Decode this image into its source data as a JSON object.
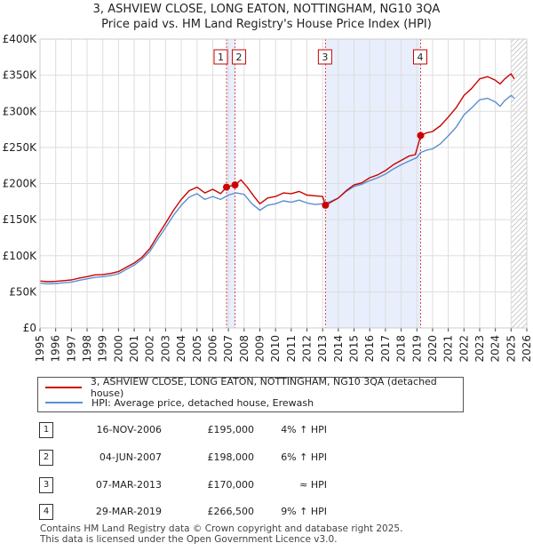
{
  "header": {
    "title_line1": "3, ASHVIEW CLOSE, LONG EATON, NOTTINGHAM, NG10 3QA",
    "title_line2": "Price paid vs. HM Land Registry's House Price Index (HPI)"
  },
  "chart_data": {
    "type": "line",
    "xlim": [
      1995,
      2026
    ],
    "ylim": [
      0,
      400000
    ],
    "y_ticks": [
      {
        "value": 0,
        "label": "£0"
      },
      {
        "value": 50000,
        "label": "£50K"
      },
      {
        "value": 100000,
        "label": "£100K"
      },
      {
        "value": 150000,
        "label": "£150K"
      },
      {
        "value": 200000,
        "label": "£200K"
      },
      {
        "value": 250000,
        "label": "£250K"
      },
      {
        "value": 300000,
        "label": "£300K"
      },
      {
        "value": 350000,
        "label": "£350K"
      },
      {
        "value": 400000,
        "label": "£400K"
      }
    ],
    "x_ticks": [
      "1995",
      "1996",
      "1997",
      "1998",
      "1999",
      "2000",
      "2001",
      "2002",
      "2003",
      "2004",
      "2005",
      "2006",
      "2007",
      "2008",
      "2009",
      "2010",
      "2011",
      "2012",
      "2013",
      "2014",
      "2015",
      "2016",
      "2017",
      "2018",
      "2019",
      "2020",
      "2021",
      "2022",
      "2023",
      "2024",
      "2025",
      "2026"
    ],
    "shaded_periods": [
      [
        2006.88,
        2007.42
      ],
      [
        2013.18,
        2019.24
      ]
    ],
    "hatched_from": 2025.0,
    "series": [
      {
        "name": "3, ASHVIEW CLOSE, LONG EATON, NOTTINGHAM, NG10 3QA (detached house)",
        "color": "#cc0000",
        "points": [
          [
            1995.0,
            65000
          ],
          [
            1995.5,
            64000
          ],
          [
            1996.0,
            64500
          ],
          [
            1996.5,
            65500
          ],
          [
            1997.0,
            66500
          ],
          [
            1997.5,
            69000
          ],
          [
            1998.0,
            71000
          ],
          [
            1998.5,
            73500
          ],
          [
            1999.0,
            74000
          ],
          [
            1999.5,
            75500
          ],
          [
            2000.0,
            78000
          ],
          [
            2000.5,
            84000
          ],
          [
            2001.0,
            90000
          ],
          [
            2001.5,
            98000
          ],
          [
            2002.0,
            110000
          ],
          [
            2002.5,
            128000
          ],
          [
            2003.0,
            145000
          ],
          [
            2003.5,
            163000
          ],
          [
            2004.0,
            178000
          ],
          [
            2004.5,
            190000
          ],
          [
            2005.0,
            195000
          ],
          [
            2005.5,
            187000
          ],
          [
            2006.0,
            192000
          ],
          [
            2006.5,
            186000
          ],
          [
            2006.88,
            195000
          ],
          [
            2007.2,
            197000
          ],
          [
            2007.42,
            198000
          ],
          [
            2007.8,
            205000
          ],
          [
            2008.2,
            195000
          ],
          [
            2008.6,
            183000
          ],
          [
            2009.0,
            172000
          ],
          [
            2009.5,
            180000
          ],
          [
            2010.0,
            182000
          ],
          [
            2010.5,
            187000
          ],
          [
            2011.0,
            186000
          ],
          [
            2011.5,
            189000
          ],
          [
            2012.0,
            184000
          ],
          [
            2012.5,
            183000
          ],
          [
            2013.0,
            182000
          ],
          [
            2013.18,
            170000
          ],
          [
            2013.6,
            175000
          ],
          [
            2014.0,
            180000
          ],
          [
            2014.5,
            190000
          ],
          [
            2015.0,
            198000
          ],
          [
            2015.5,
            201000
          ],
          [
            2016.0,
            208000
          ],
          [
            2016.5,
            212000
          ],
          [
            2017.0,
            218000
          ],
          [
            2017.5,
            226000
          ],
          [
            2018.0,
            232000
          ],
          [
            2018.5,
            238000
          ],
          [
            2018.9,
            240000
          ],
          [
            2019.1,
            255000
          ],
          [
            2019.24,
            266500
          ],
          [
            2019.6,
            270000
          ],
          [
            2020.0,
            272000
          ],
          [
            2020.5,
            280000
          ],
          [
            2021.0,
            292000
          ],
          [
            2021.5,
            305000
          ],
          [
            2022.0,
            322000
          ],
          [
            2022.5,
            332000
          ],
          [
            2023.0,
            345000
          ],
          [
            2023.5,
            348000
          ],
          [
            2024.0,
            343000
          ],
          [
            2024.3,
            338000
          ],
          [
            2024.6,
            345000
          ],
          [
            2025.0,
            352000
          ],
          [
            2025.2,
            345000
          ]
        ]
      },
      {
        "name": "HPI: Average price, detached house, Erewash",
        "color": "#5b8fd0",
        "points": [
          [
            1995.0,
            62000
          ],
          [
            1995.5,
            61000
          ],
          [
            1996.0,
            61500
          ],
          [
            1996.5,
            62500
          ],
          [
            1997.0,
            63500
          ],
          [
            1997.5,
            66000
          ],
          [
            1998.0,
            68000
          ],
          [
            1998.5,
            70000
          ],
          [
            1999.0,
            71000
          ],
          [
            1999.5,
            72500
          ],
          [
            2000.0,
            75000
          ],
          [
            2000.5,
            81000
          ],
          [
            2001.0,
            87000
          ],
          [
            2001.5,
            95000
          ],
          [
            2002.0,
            106000
          ],
          [
            2002.5,
            123000
          ],
          [
            2003.0,
            139000
          ],
          [
            2003.5,
            156000
          ],
          [
            2004.0,
            170000
          ],
          [
            2004.5,
            181000
          ],
          [
            2005.0,
            186000
          ],
          [
            2005.5,
            178000
          ],
          [
            2006.0,
            182000
          ],
          [
            2006.5,
            178000
          ],
          [
            2007.0,
            184000
          ],
          [
            2007.5,
            187000
          ],
          [
            2008.0,
            185000
          ],
          [
            2008.5,
            172000
          ],
          [
            2009.0,
            163000
          ],
          [
            2009.5,
            170000
          ],
          [
            2010.0,
            172000
          ],
          [
            2010.5,
            176000
          ],
          [
            2011.0,
            174000
          ],
          [
            2011.5,
            177000
          ],
          [
            2012.0,
            173000
          ],
          [
            2012.5,
            171000
          ],
          [
            2013.0,
            172000
          ],
          [
            2013.5,
            175000
          ],
          [
            2014.0,
            180000
          ],
          [
            2014.5,
            189000
          ],
          [
            2015.0,
            196000
          ],
          [
            2015.5,
            199000
          ],
          [
            2016.0,
            204000
          ],
          [
            2016.5,
            208000
          ],
          [
            2017.0,
            213000
          ],
          [
            2017.5,
            220000
          ],
          [
            2018.0,
            226000
          ],
          [
            2018.5,
            231000
          ],
          [
            2019.0,
            236000
          ],
          [
            2019.24,
            243000
          ],
          [
            2019.6,
            246000
          ],
          [
            2020.0,
            248000
          ],
          [
            2020.5,
            255000
          ],
          [
            2021.0,
            266000
          ],
          [
            2021.5,
            278000
          ],
          [
            2022.0,
            295000
          ],
          [
            2022.5,
            305000
          ],
          [
            2023.0,
            316000
          ],
          [
            2023.5,
            318000
          ],
          [
            2024.0,
            313000
          ],
          [
            2024.3,
            307000
          ],
          [
            2024.6,
            315000
          ],
          [
            2025.0,
            322000
          ],
          [
            2025.2,
            318000
          ]
        ]
      }
    ],
    "sales": [
      {
        "id": "1",
        "x": 2006.88,
        "value": 195000
      },
      {
        "id": "2",
        "x": 2007.42,
        "value": 198000
      },
      {
        "id": "3",
        "x": 2013.18,
        "value": 170000
      },
      {
        "id": "4",
        "x": 2019.24,
        "value": 266500
      }
    ]
  },
  "legend": {
    "items": [
      {
        "label": "3, ASHVIEW CLOSE, LONG EATON, NOTTINGHAM, NG10 3QA (detached house)",
        "color": "#cc0000"
      },
      {
        "label": "HPI: Average price, detached house, Erewash",
        "color": "#5b8fd0"
      }
    ]
  },
  "transactions": [
    {
      "id": "1",
      "date": "16-NOV-2006",
      "price": "£195,000",
      "hpi": "4% ↑ HPI"
    },
    {
      "id": "2",
      "date": "04-JUN-2007",
      "price": "£198,000",
      "hpi": "6% ↑ HPI"
    },
    {
      "id": "3",
      "date": "07-MAR-2013",
      "price": "£170,000",
      "hpi": "≈ HPI"
    },
    {
      "id": "4",
      "date": "29-MAR-2019",
      "price": "£266,500",
      "hpi": "9% ↑ HPI"
    }
  ],
  "footer": {
    "line1": "Contains HM Land Registry data © Crown copyright and database right 2025.",
    "line2": "This data is licensed under the Open Government Licence v3.0."
  }
}
